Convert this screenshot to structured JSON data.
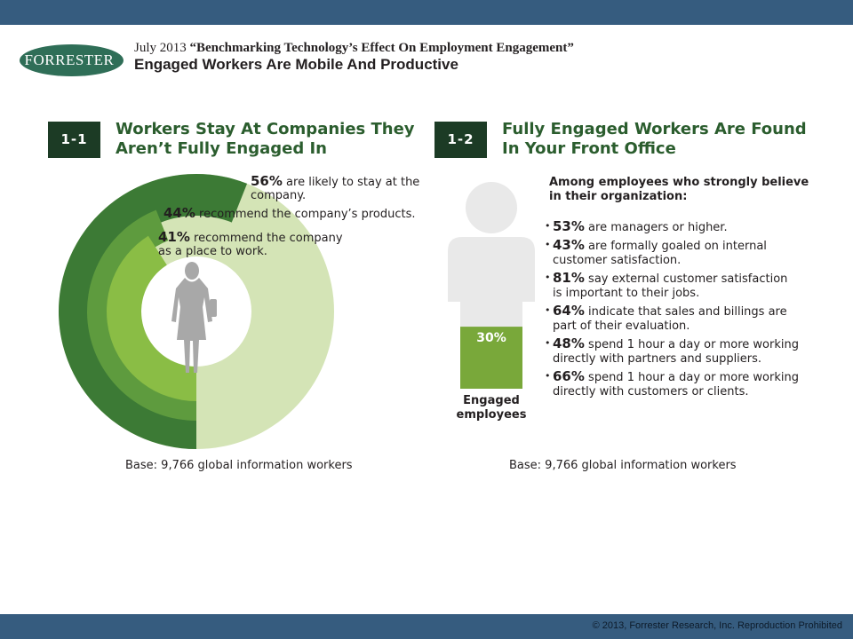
{
  "header": {
    "logo_text": "FORRESTER",
    "logo_mark": "®",
    "report_date": "July 2013",
    "report_title": "“Benchmarking Technology’s Effect On Employment Engagement”",
    "page_title": "Engaged Workers Are Mobile And Productive"
  },
  "figure1": {
    "number": "1-1",
    "title_lines": [
      "Workers Stay At Companies They",
      "Aren’t Fully Engaged In"
    ],
    "base": "Base: 9,766 global information workers"
  },
  "figure2": {
    "number": "1-2",
    "title_lines": [
      "Fully Engaged Workers Are Found",
      "In Your Front Office"
    ],
    "intro_lines": [
      "Among employees who strongly believe",
      "in their organization:"
    ],
    "bar_pct_label": "30%",
    "bar_label_lines": [
      "Engaged",
      "employees"
    ],
    "bullets": [
      {
        "pct": "53%",
        "lines": [
          "are managers or higher."
        ]
      },
      {
        "pct": "43%",
        "lines": [
          "are formally goaled on internal",
          "customer satisfaction."
        ]
      },
      {
        "pct": "81%",
        "lines": [
          "say external customer satisfaction",
          "is important to their jobs."
        ]
      },
      {
        "pct": "64%",
        "lines": [
          "indicate that sales and billings are",
          "part of their evaluation."
        ]
      },
      {
        "pct": "48%",
        "lines": [
          "spend 1 hour a day or more working",
          "directly with partners and suppliers."
        ]
      },
      {
        "pct": "66%",
        "lines": [
          "spend 1 hour a day or more working",
          "directly with customers or clients."
        ]
      }
    ],
    "base": "Base: 9,766 global information workers"
  },
  "chart_data": [
    {
      "type": "pie",
      "subtype": "concentric-rings",
      "series": [
        {
          "pct_label": "56%",
          "value": 56,
          "label_lines": [
            "are likely to stay at the",
            "company."
          ],
          "color": "#3c7a35"
        },
        {
          "pct_label": "44%",
          "value": 44,
          "label_lines": [
            "recommend the company’s products."
          ],
          "color": "#5e9b3e"
        },
        {
          "pct_label": "41%",
          "value": 41,
          "label_lines": [
            "recommend the company",
            "as a place to work."
          ],
          "color": "#8abd45"
        }
      ],
      "remainder_color": "#d4e4b6"
    },
    {
      "type": "bar",
      "subtype": "figure-fill",
      "categories": [
        "Engaged employees"
      ],
      "values": [
        30
      ],
      "fill_color": "#79a83a",
      "background_color": "#e9e9e9"
    }
  ],
  "footer": {
    "copyright": "© 2013, Forrester Research, Inc. Reproduction Prohibited"
  }
}
